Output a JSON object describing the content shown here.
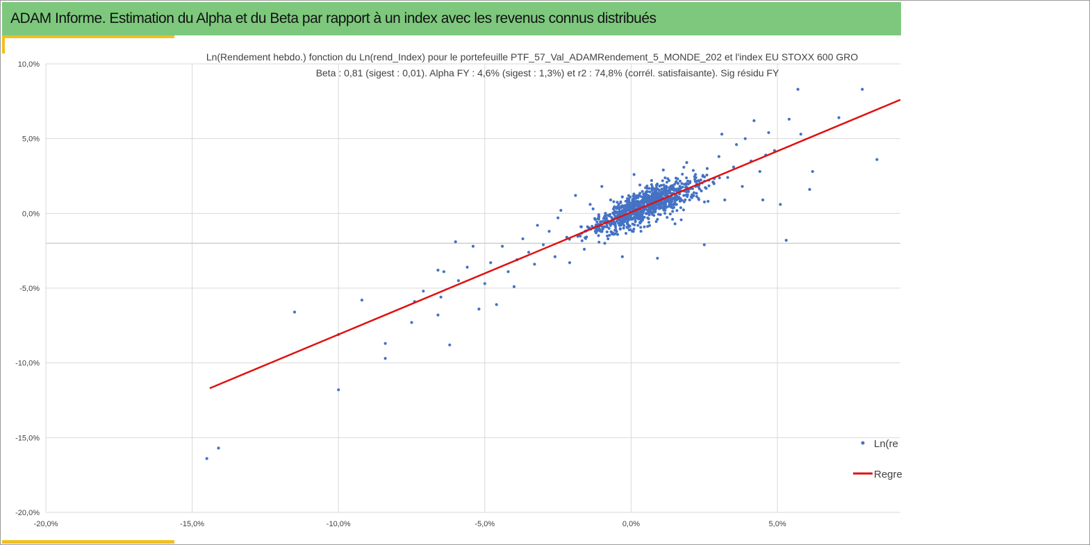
{
  "header": {
    "title": "ADAM Informe. Estimation du Alpha et du Beta par rapport à un index avec les revenus connus distribués"
  },
  "colors": {
    "title_bg": "#7dc87d",
    "accent": "#f0c020",
    "points": "#4472c4",
    "regression": "#e01010",
    "grid": "#d9d9d9"
  },
  "chart_data": {
    "type": "scatter",
    "title": "Ln(Rendement hebdo.) fonction du Ln(rend_Index) pour le portefeuille PTF_57_Val_ADAMRendement_5_MONDE_202 et l'index EU STOXX 600 GRO",
    "subtitle": "Beta : 0,81 (sigest : 0,01).  Alpha FY : 4,6% (sigest : 1,3%) et r2 : 74,8% (corrél. satisfaisante). Sig résidu FY",
    "xlabel": "",
    "ylabel": "",
    "xlim": [
      -20,
      9.2
    ],
    "ylim": [
      -20,
      10
    ],
    "x_ticks": [
      -20,
      -15,
      -10,
      -5,
      0,
      5
    ],
    "x_tick_labels": [
      "-20,0%",
      "-15,0%",
      "-10,0%",
      "-5,0%",
      "0,0%",
      "5,0%"
    ],
    "y_ticks": [
      10,
      5,
      0,
      -5,
      -10,
      -15,
      -20
    ],
    "y_tick_labels": [
      "10,0%",
      "5,0%",
      "0,0%",
      "-5,0%",
      "-10,0%",
      "-15,0%",
      "-20,0%"
    ],
    "extra_hline_y": -2.0,
    "grid": true,
    "legend_position": "bottom-right",
    "series": [
      {
        "name": "Ln(re",
        "kind": "scatter",
        "points": [
          [
            -14.5,
            -16.4
          ],
          [
            -14.1,
            -15.7
          ],
          [
            -11.5,
            -6.6
          ],
          [
            -10.0,
            -11.8
          ],
          [
            -10.0,
            -8.1
          ],
          [
            -9.2,
            -5.8
          ],
          [
            -8.4,
            -8.7
          ],
          [
            -8.4,
            -9.7
          ],
          [
            -7.5,
            -7.3
          ],
          [
            -7.4,
            -5.9
          ],
          [
            -7.1,
            -5.2
          ],
          [
            -6.6,
            -3.8
          ],
          [
            -6.4,
            -3.9
          ],
          [
            -6.5,
            -5.6
          ],
          [
            -6.6,
            -6.8
          ],
          [
            -6.2,
            -8.8
          ],
          [
            -6.0,
            -1.9
          ],
          [
            -5.9,
            -4.5
          ],
          [
            -5.6,
            -3.6
          ],
          [
            -5.4,
            -2.2
          ],
          [
            -5.2,
            -6.4
          ],
          [
            -5.0,
            -4.7
          ],
          [
            -4.8,
            -3.3
          ],
          [
            -4.6,
            -6.1
          ],
          [
            -4.4,
            -2.2
          ],
          [
            -4.2,
            -3.9
          ],
          [
            -4.0,
            -4.9
          ],
          [
            -3.9,
            -3.1
          ],
          [
            -3.7,
            -1.7
          ],
          [
            -3.5,
            -2.6
          ],
          [
            -3.3,
            -3.4
          ],
          [
            -3.2,
            -0.8
          ],
          [
            -3.0,
            -2.1
          ],
          [
            -2.8,
            -1.2
          ],
          [
            -2.6,
            -2.9
          ],
          [
            -2.5,
            -0.3
          ],
          [
            -2.4,
            0.2
          ],
          [
            -2.2,
            -1.6
          ],
          [
            -2.1,
            -3.3
          ],
          [
            -1.9,
            1.2
          ],
          [
            -1.7,
            -0.9
          ],
          [
            -1.6,
            -2.4
          ],
          [
            -1.4,
            0.6
          ],
          [
            -1.2,
            -1.3
          ],
          [
            -1.1,
            -0.2
          ],
          [
            -1.0,
            1.8
          ],
          [
            -0.9,
            -2.0
          ],
          [
            -0.8,
            -0.5
          ],
          [
            -0.7,
            0.9
          ],
          [
            -0.6,
            -1.4
          ],
          [
            -0.5,
            0.1
          ],
          [
            -0.4,
            -0.8
          ],
          [
            -0.3,
            1.1
          ],
          [
            -0.2,
            -0.3
          ],
          [
            -0.1,
            0.5
          ],
          [
            0.0,
            -0.1
          ],
          [
            0.1,
            2.6
          ],
          [
            0.2,
            0.3
          ],
          [
            0.3,
            -0.6
          ],
          [
            0.4,
            0.8
          ],
          [
            0.5,
            1.4
          ],
          [
            0.6,
            0.0
          ],
          [
            0.7,
            2.2
          ],
          [
            0.8,
            0.6
          ],
          [
            0.9,
            -0.4
          ],
          [
            1.0,
            1.1
          ],
          [
            1.1,
            2.9
          ],
          [
            1.2,
            0.4
          ],
          [
            1.4,
            1.6
          ],
          [
            1.5,
            -0.7
          ],
          [
            1.6,
            2.0
          ],
          [
            1.8,
            1.2
          ],
          [
            1.9,
            3.4
          ],
          [
            2.0,
            0.9
          ],
          [
            2.2,
            2.6
          ],
          [
            2.4,
            1.5
          ],
          [
            2.5,
            -2.1
          ],
          [
            2.6,
            3.0
          ],
          [
            2.8,
            2.1
          ],
          [
            3.0,
            3.8
          ],
          [
            3.1,
            5.3
          ],
          [
            3.3,
            2.4
          ],
          [
            3.5,
            3.1
          ],
          [
            3.6,
            4.6
          ],
          [
            3.8,
            1.8
          ],
          [
            3.9,
            5.0
          ],
          [
            4.1,
            3.5
          ],
          [
            4.2,
            6.2
          ],
          [
            4.4,
            2.8
          ],
          [
            4.5,
            0.9
          ],
          [
            4.6,
            3.9
          ],
          [
            4.7,
            5.4
          ],
          [
            4.9,
            4.2
          ],
          [
            5.1,
            0.6
          ],
          [
            5.3,
            -1.8
          ],
          [
            5.4,
            6.3
          ],
          [
            5.7,
            8.3
          ],
          [
            5.8,
            5.3
          ],
          [
            6.1,
            1.6
          ],
          [
            6.2,
            2.8
          ],
          [
            7.1,
            6.4
          ],
          [
            7.9,
            8.3
          ],
          [
            8.4,
            3.6
          ],
          [
            3.2,
            0.9
          ],
          [
            -0.3,
            -2.9
          ],
          [
            0.9,
            -3.0
          ],
          [
            1.7,
            1.7
          ],
          [
            -1.3,
            0.3
          ],
          [
            0.3,
            1.9
          ],
          [
            2.3,
            1.0
          ]
        ]
      },
      {
        "name": "Regre",
        "kind": "line",
        "points": [
          [
            -14.4,
            -11.7
          ],
          [
            9.2,
            7.6
          ]
        ]
      }
    ]
  }
}
